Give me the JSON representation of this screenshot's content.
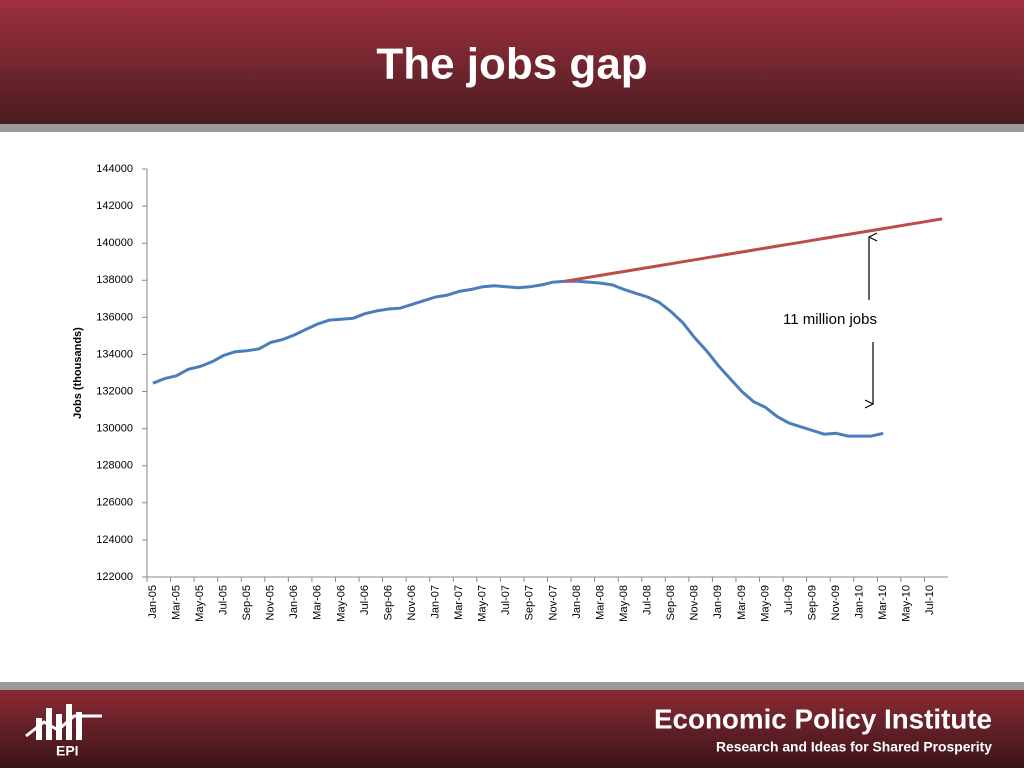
{
  "header": {
    "title": "The jobs gap"
  },
  "chart_data": {
    "type": "line",
    "y_label": "Jobs (thousands)",
    "annotation": "11 million jobs",
    "categories": [
      "Jan-05",
      null,
      "Mar-05",
      null,
      "May-05",
      null,
      "Jul-05",
      null,
      "Sep-05",
      null,
      "Nov-05",
      null,
      "Jan-06",
      null,
      "Mar-06",
      null,
      "May-06",
      null,
      "Jul-06",
      null,
      "Sep-06",
      null,
      "Nov-06",
      null,
      "Jan-07",
      null,
      "Mar-07",
      null,
      "May-07",
      null,
      "Jul-07",
      null,
      "Sep-07",
      null,
      "Nov-07",
      null,
      "Jan-08",
      null,
      "Mar-08",
      null,
      "May-08",
      null,
      "Jul-08",
      null,
      "Sep-08",
      null,
      "Nov-08",
      null,
      "Jan-09",
      null,
      "Mar-09",
      null,
      "May-09",
      null,
      "Jul-09",
      null,
      "Sep-09",
      null,
      "Nov-09",
      null,
      "Jan-10",
      null,
      "Mar-10",
      null,
      "May-10",
      null,
      "Jul-10",
      null
    ],
    "series": [
      {
        "color": "#4a7ebb",
        "values": [
          132450,
          132700,
          132850,
          133200,
          133350,
          133600,
          133950,
          134150,
          134200,
          134300,
          134650,
          134800,
          135050,
          135350,
          135650,
          135850,
          135900,
          135950,
          136200,
          136350,
          136450,
          136500,
          136700,
          136900,
          137100,
          137200,
          137400,
          137500,
          137650,
          137700,
          137650,
          137600,
          137650,
          137750,
          137900,
          137950,
          137950,
          137900,
          137850,
          137750,
          137500,
          137300,
          137100,
          136800,
          136300,
          135700,
          134900,
          134200,
          133400,
          132700,
          132000,
          131450,
          131150,
          130650,
          130300,
          130100,
          129900,
          129700,
          129750,
          129600,
          129600,
          129600,
          129750,
          null,
          null,
          null,
          null,
          null
        ]
      },
      {
        "color": "#be4b48",
        "values": [
          null,
          null,
          null,
          null,
          null,
          null,
          null,
          null,
          null,
          null,
          null,
          null,
          null,
          null,
          null,
          null,
          null,
          null,
          null,
          null,
          null,
          null,
          null,
          null,
          null,
          null,
          null,
          null,
          null,
          null,
          null,
          null,
          null,
          null,
          null,
          137950,
          138055,
          138160,
          138265,
          138370,
          138475,
          138580,
          138685,
          138790,
          138895,
          139000,
          139105,
          139210,
          139315,
          139420,
          139525,
          139630,
          139735,
          139840,
          139945,
          140050,
          140155,
          140260,
          140365,
          140470,
          140575,
          140680,
          140785,
          140890,
          140995,
          141100,
          141205,
          141310
        ]
      }
    ],
    "ylim": [
      122000,
      144000
    ],
    "yticks": [
      122000,
      124000,
      126000,
      128000,
      130000,
      132000,
      134000,
      136000,
      138000,
      140000,
      142000,
      144000
    ]
  },
  "footer": {
    "logo": "EPI",
    "org": "Economic Policy Institute",
    "tagline": "Research and Ideas for Shared Prosperity"
  }
}
